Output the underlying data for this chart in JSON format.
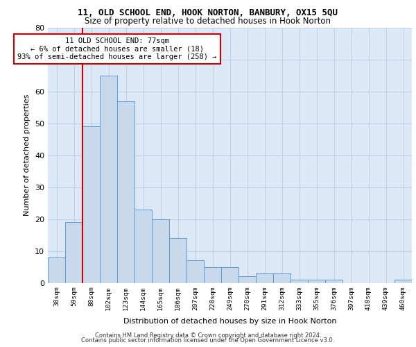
{
  "title1": "11, OLD SCHOOL END, HOOK NORTON, BANBURY, OX15 5QU",
  "title2": "Size of property relative to detached houses in Hook Norton",
  "xlabel": "Distribution of detached houses by size in Hook Norton",
  "ylabel": "Number of detached properties",
  "bar_labels": [
    "38sqm",
    "59sqm",
    "80sqm",
    "102sqm",
    "123sqm",
    "144sqm",
    "165sqm",
    "186sqm",
    "207sqm",
    "228sqm",
    "249sqm",
    "270sqm",
    "291sqm",
    "312sqm",
    "333sqm",
    "355sqm",
    "376sqm",
    "397sqm",
    "418sqm",
    "439sqm",
    "460sqm"
  ],
  "bar_values": [
    8,
    19,
    49,
    65,
    57,
    23,
    20,
    14,
    7,
    5,
    5,
    2,
    3,
    3,
    1,
    1,
    1,
    0,
    0,
    0,
    1
  ],
  "bar_color": "#c9d9ec",
  "bar_edge_color": "#5b9bd5",
  "vline_color": "#cc0000",
  "vline_position": 1.5,
  "annotation_text": "11 OLD SCHOOL END: 77sqm\n← 6% of detached houses are smaller (18)\n93% of semi-detached houses are larger (258) →",
  "annotation_border_color": "#cc0000",
  "ylim": [
    0,
    80
  ],
  "yticks": [
    0,
    10,
    20,
    30,
    40,
    50,
    60,
    70,
    80
  ],
  "background_color": "#dce8f5",
  "grid_color": "#c0cfe0",
  "footer_line1": "Contains HM Land Registry data © Crown copyright and database right 2024.",
  "footer_line2": "Contains public sector information licensed under the Open Government Licence v3.0."
}
